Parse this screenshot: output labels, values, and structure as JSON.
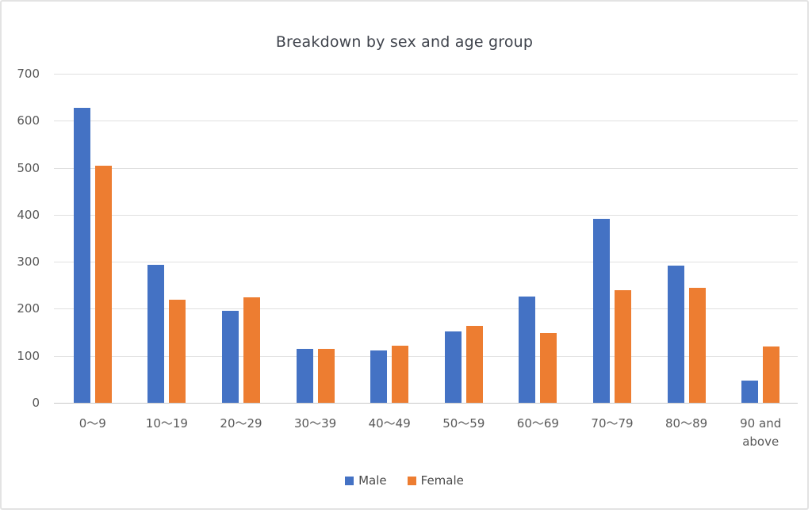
{
  "chart_data": {
    "type": "bar",
    "title": "Breakdown by sex and age group",
    "categories": [
      "0〜9",
      "10〜19",
      "20〜29",
      "30〜39",
      "40〜49",
      "50〜59",
      "60〜69",
      "70〜79",
      "80〜89",
      "90 and above"
    ],
    "series": [
      {
        "name": "Male",
        "color": "#4472C4",
        "values": [
          627,
          294,
          196,
          115,
          111,
          152,
          226,
          392,
          291,
          48
        ]
      },
      {
        "name": "Female",
        "color": "#ED7D31",
        "values": [
          505,
          220,
          224,
          115,
          121,
          163,
          148,
          240,
          245,
          119
        ]
      }
    ],
    "xlabel": "",
    "ylabel": "",
    "ylim": [
      0,
      700
    ],
    "yticks": [
      0,
      100,
      200,
      300,
      400,
      500,
      600,
      700
    ],
    "grid": true,
    "legend_position": "bottom",
    "gridline_color": "#e0e0e0",
    "tick_label_color": "#595959",
    "title_color": "#3f434c"
  }
}
